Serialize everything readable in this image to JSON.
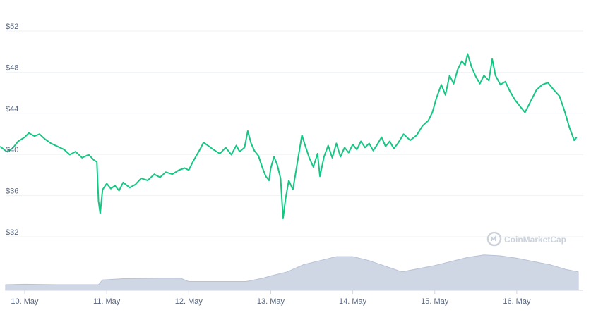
{
  "chart_data": {
    "type": "line",
    "title": "",
    "xlabel": "",
    "ylabel": "",
    "currency_prefix": "$",
    "ylim": [
      30.5,
      53
    ],
    "y_ticks": [
      32,
      36,
      40,
      44,
      48,
      52
    ],
    "y_tick_labels": [
      "$32",
      "$36",
      "$40",
      "$44",
      "$48",
      "$52"
    ],
    "x_range_days": [
      9.7,
      17.8
    ],
    "x_ticks": [
      10,
      11,
      12,
      13,
      14,
      15,
      16
    ],
    "x_tick_labels": [
      "10. May",
      "11. May",
      "12. May",
      "13. May",
      "14. May",
      "15. May",
      "16. May"
    ],
    "grid": true,
    "legend": "none",
    "colors": {
      "price_line": "#16c784",
      "volume_area": "#cfd6e4",
      "volume_stroke": "#b8c2d6",
      "grid": "#eff2f5",
      "tick_text": "#58667e",
      "watermark": "#c4cbd6"
    },
    "series": [
      {
        "role": "price",
        "points": [
          [
            9.7,
            40.3
          ],
          [
            9.78,
            39.8
          ],
          [
            9.85,
            40.1
          ],
          [
            9.92,
            40.8
          ],
          [
            10.0,
            41.2
          ],
          [
            10.05,
            41.6
          ],
          [
            10.12,
            41.3
          ],
          [
            10.18,
            41.5
          ],
          [
            10.25,
            41.0
          ],
          [
            10.32,
            40.6
          ],
          [
            10.4,
            40.3
          ],
          [
            10.48,
            40.0
          ],
          [
            10.55,
            39.5
          ],
          [
            10.62,
            39.8
          ],
          [
            10.7,
            39.2
          ],
          [
            10.78,
            39.5
          ],
          [
            10.84,
            39.0
          ],
          [
            10.88,
            38.8
          ],
          [
            10.9,
            35.0
          ],
          [
            10.92,
            33.8
          ],
          [
            10.95,
            36.1
          ],
          [
            11.0,
            36.7
          ],
          [
            11.05,
            36.2
          ],
          [
            11.1,
            36.5
          ],
          [
            11.15,
            36.0
          ],
          [
            11.2,
            36.8
          ],
          [
            11.28,
            36.3
          ],
          [
            11.35,
            36.6
          ],
          [
            11.42,
            37.2
          ],
          [
            11.5,
            37.0
          ],
          [
            11.58,
            37.6
          ],
          [
            11.65,
            37.3
          ],
          [
            11.72,
            37.8
          ],
          [
            11.8,
            37.6
          ],
          [
            11.88,
            38.0
          ],
          [
            11.95,
            38.2
          ],
          [
            12.0,
            38.0
          ],
          [
            12.05,
            38.8
          ],
          [
            12.1,
            39.5
          ],
          [
            12.15,
            40.2
          ],
          [
            12.18,
            40.7
          ],
          [
            12.25,
            40.3
          ],
          [
            12.3,
            40.0
          ],
          [
            12.38,
            39.6
          ],
          [
            12.45,
            40.2
          ],
          [
            12.52,
            39.5
          ],
          [
            12.58,
            40.4
          ],
          [
            12.62,
            39.8
          ],
          [
            12.68,
            40.2
          ],
          [
            12.72,
            41.8
          ],
          [
            12.76,
            40.6
          ],
          [
            12.8,
            39.9
          ],
          [
            12.85,
            39.4
          ],
          [
            12.9,
            38.2
          ],
          [
            12.94,
            37.4
          ],
          [
            12.98,
            37.0
          ],
          [
            13.0,
            38.2
          ],
          [
            13.04,
            39.3
          ],
          [
            13.08,
            38.5
          ],
          [
            13.12,
            37.2
          ],
          [
            13.15,
            33.3
          ],
          [
            13.18,
            35.2
          ],
          [
            13.22,
            37.0
          ],
          [
            13.27,
            36.1
          ],
          [
            13.32,
            38.5
          ],
          [
            13.38,
            41.4
          ],
          [
            13.42,
            40.4
          ],
          [
            13.47,
            39.2
          ],
          [
            13.52,
            38.3
          ],
          [
            13.57,
            39.6
          ],
          [
            13.6,
            37.4
          ],
          [
            13.65,
            39.3
          ],
          [
            13.7,
            40.4
          ],
          [
            13.75,
            39.2
          ],
          [
            13.8,
            40.6
          ],
          [
            13.85,
            39.3
          ],
          [
            13.9,
            40.2
          ],
          [
            13.95,
            39.7
          ],
          [
            14.0,
            40.5
          ],
          [
            14.05,
            40.0
          ],
          [
            14.1,
            40.8
          ],
          [
            14.15,
            40.2
          ],
          [
            14.2,
            40.6
          ],
          [
            14.25,
            39.9
          ],
          [
            14.3,
            40.5
          ],
          [
            14.35,
            41.2
          ],
          [
            14.4,
            40.3
          ],
          [
            14.45,
            40.8
          ],
          [
            14.5,
            40.1
          ],
          [
            14.55,
            40.6
          ],
          [
            14.62,
            41.5
          ],
          [
            14.7,
            40.9
          ],
          [
            14.78,
            41.4
          ],
          [
            14.85,
            42.3
          ],
          [
            14.92,
            42.8
          ],
          [
            14.97,
            43.6
          ],
          [
            15.02,
            45.0
          ],
          [
            15.08,
            46.3
          ],
          [
            15.13,
            45.3
          ],
          [
            15.18,
            47.2
          ],
          [
            15.23,
            46.4
          ],
          [
            15.28,
            47.8
          ],
          [
            15.33,
            48.6
          ],
          [
            15.37,
            48.2
          ],
          [
            15.4,
            49.3
          ],
          [
            15.45,
            48.0
          ],
          [
            15.5,
            47.1
          ],
          [
            15.55,
            46.4
          ],
          [
            15.6,
            47.2
          ],
          [
            15.66,
            46.7
          ],
          [
            15.7,
            48.8
          ],
          [
            15.74,
            47.2
          ],
          [
            15.8,
            46.3
          ],
          [
            15.86,
            46.6
          ],
          [
            15.92,
            45.6
          ],
          [
            15.98,
            44.8
          ],
          [
            16.04,
            44.2
          ],
          [
            16.1,
            43.6
          ],
          [
            16.17,
            44.7
          ],
          [
            16.24,
            45.8
          ],
          [
            16.31,
            46.3
          ],
          [
            16.38,
            46.5
          ],
          [
            16.45,
            45.8
          ],
          [
            16.52,
            45.2
          ],
          [
            16.58,
            43.8
          ],
          [
            16.64,
            42.2
          ],
          [
            16.7,
            40.9
          ],
          [
            16.73,
            41.2
          ]
        ]
      },
      {
        "role": "volume",
        "points": [
          [
            9.7,
            0.14
          ],
          [
            10.0,
            0.15
          ],
          [
            10.4,
            0.14
          ],
          [
            10.8,
            0.14
          ],
          [
            10.9,
            0.14
          ],
          [
            10.95,
            0.26
          ],
          [
            11.2,
            0.29
          ],
          [
            11.6,
            0.3
          ],
          [
            11.9,
            0.3
          ],
          [
            12.0,
            0.22
          ],
          [
            12.4,
            0.22
          ],
          [
            12.7,
            0.22
          ],
          [
            12.9,
            0.3
          ],
          [
            13.0,
            0.36
          ],
          [
            13.2,
            0.46
          ],
          [
            13.4,
            0.64
          ],
          [
            13.6,
            0.74
          ],
          [
            13.8,
            0.84
          ],
          [
            14.0,
            0.84
          ],
          [
            14.2,
            0.74
          ],
          [
            14.4,
            0.6
          ],
          [
            14.6,
            0.46
          ],
          [
            14.8,
            0.54
          ],
          [
            15.0,
            0.62
          ],
          [
            15.2,
            0.72
          ],
          [
            15.4,
            0.82
          ],
          [
            15.6,
            0.88
          ],
          [
            15.8,
            0.86
          ],
          [
            16.0,
            0.8
          ],
          [
            16.2,
            0.72
          ],
          [
            16.4,
            0.64
          ],
          [
            16.6,
            0.52
          ],
          [
            16.75,
            0.46
          ]
        ]
      }
    ]
  },
  "watermark": {
    "text": "CoinMarketCap",
    "icon": "coinmarketcap-logo-icon"
  }
}
